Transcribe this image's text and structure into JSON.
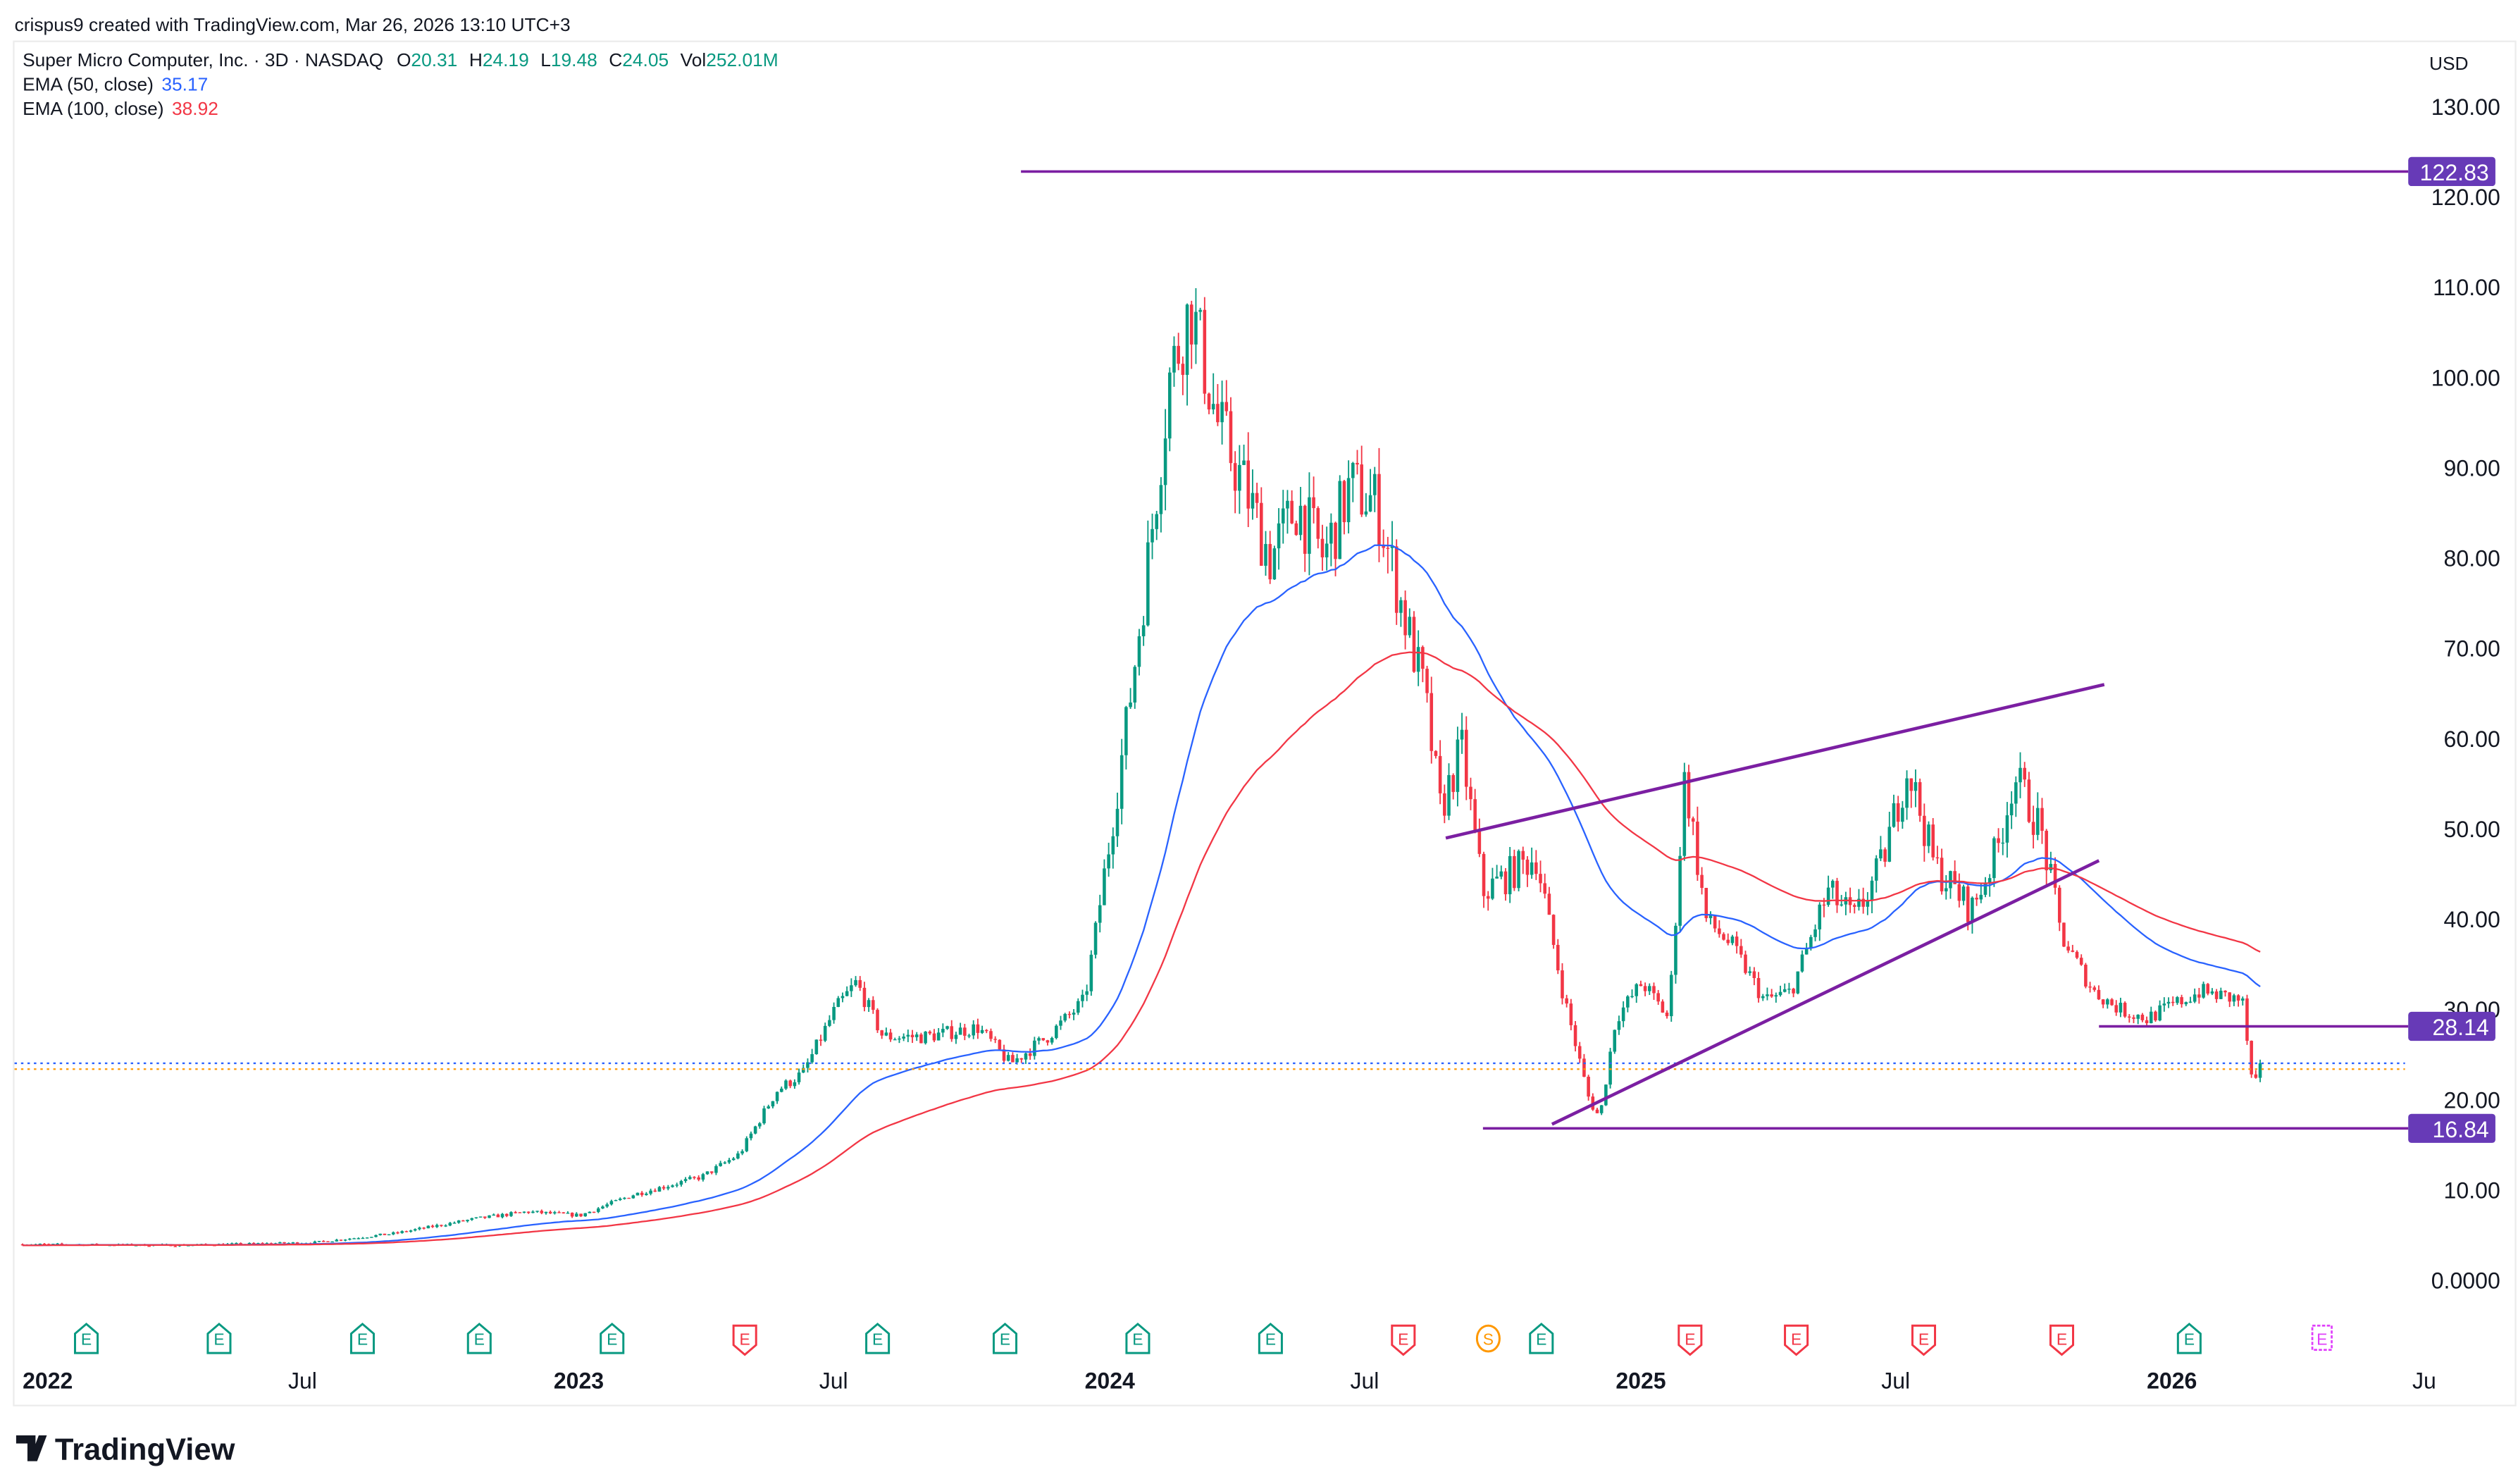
{
  "attribution": "crispus9 created with TradingView.com, Mar 26, 2026 13:10 UTC+3",
  "legend": {
    "symbol": "Super Micro Computer, Inc. · 3D · NASDAQ",
    "o_label": "O",
    "o": "20.31",
    "h_label": "H",
    "h": "24.19",
    "l_label": "L",
    "l": "19.48",
    "c_label": "C",
    "c": "24.05",
    "vol_label": "Vol",
    "vol": "252.01M",
    "ema50_label": "EMA (50, close)",
    "ema50": "35.17",
    "ema100_label": "EMA (100, close)",
    "ema100": "38.92"
  },
  "currency": "USD",
  "logo": "TradingView",
  "colors": {
    "up": "#089981",
    "down": "#f23645",
    "ema50": "#2962ff",
    "ema100": "#f23645",
    "drawing": "#7b1fa2",
    "label": "#673ab7",
    "grid": "#ffffff"
  },
  "chart_data": {
    "type": "candlestick",
    "title": "Super Micro Computer, Inc. · 3D · NASDAQ",
    "interval": "3D",
    "ylim": [
      0,
      130
    ],
    "yticks": [
      "0.0000",
      "10.00",
      "20.00",
      "30.00",
      "40.00",
      "50.00",
      "60.00",
      "70.00",
      "80.00",
      "90.00",
      "100.00",
      "110.00",
      "120.00",
      "130.00"
    ],
    "ytick_values": [
      0,
      10,
      20,
      30,
      40,
      50,
      60,
      70,
      80,
      90,
      100,
      110,
      120,
      130
    ],
    "xlim": [
      2022.0,
      2026.52
    ],
    "xticks": [
      {
        "t": 2022.0,
        "label": "2022",
        "bold": true
      },
      {
        "t": 2022.5,
        "label": "Jul"
      },
      {
        "t": 2023.0,
        "label": "2023",
        "bold": true
      },
      {
        "t": 2023.5,
        "label": "Jul"
      },
      {
        "t": 2024.0,
        "label": "2024",
        "bold": true
      },
      {
        "t": 2024.5,
        "label": "Jul"
      },
      {
        "t": 2025.0,
        "label": "2025",
        "bold": true
      },
      {
        "t": 2025.5,
        "label": "Jul"
      },
      {
        "t": 2026.0,
        "label": "2026",
        "bold": true
      },
      {
        "t": 2026.5,
        "label": "Ju"
      }
    ],
    "close_path": [
      [
        2022.0,
        4.0
      ],
      [
        2022.3,
        3.9
      ],
      [
        2022.55,
        4.2
      ],
      [
        2022.7,
        5.2
      ],
      [
        2022.85,
        6.8
      ],
      [
        2022.95,
        7.6
      ],
      [
        2023.05,
        7.2
      ],
      [
        2023.15,
        9.5
      ],
      [
        2023.28,
        11.5
      ],
      [
        2023.35,
        14
      ],
      [
        2023.42,
        21
      ],
      [
        2023.47,
        23
      ],
      [
        2023.53,
        30
      ],
      [
        2023.57,
        33
      ],
      [
        2023.62,
        27
      ],
      [
        2023.7,
        27
      ],
      [
        2023.8,
        28
      ],
      [
        2023.86,
        24
      ],
      [
        2023.93,
        27
      ],
      [
        2024.0,
        31
      ],
      [
        2024.04,
        46
      ],
      [
        2024.08,
        62
      ],
      [
        2024.12,
        80
      ],
      [
        2024.16,
        100
      ],
      [
        2024.2,
        108
      ],
      [
        2024.25,
        95
      ],
      [
        2024.3,
        88
      ],
      [
        2024.35,
        80
      ],
      [
        2024.4,
        86
      ],
      [
        2024.45,
        80
      ],
      [
        2024.5,
        88
      ],
      [
        2024.55,
        86
      ],
      [
        2024.6,
        74
      ],
      [
        2024.64,
        65
      ],
      [
        2024.67,
        52
      ],
      [
        2024.71,
        59
      ],
      [
        2024.75,
        43
      ],
      [
        2024.8,
        45
      ],
      [
        2024.85,
        47
      ],
      [
        2024.9,
        32
      ],
      [
        2024.95,
        20
      ],
      [
        2024.97,
        18
      ],
      [
        2025.0,
        29
      ],
      [
        2025.05,
        33
      ],
      [
        2025.1,
        29
      ],
      [
        2025.13,
        56
      ],
      [
        2025.17,
        40
      ],
      [
        2025.22,
        37
      ],
      [
        2025.28,
        31
      ],
      [
        2025.33,
        32
      ],
      [
        2025.4,
        43
      ],
      [
        2025.45,
        40
      ],
      [
        2025.5,
        46
      ],
      [
        2025.55,
        57
      ],
      [
        2025.6,
        46
      ],
      [
        2025.67,
        41
      ],
      [
        2025.72,
        48
      ],
      [
        2025.75,
        56
      ],
      [
        2025.8,
        50
      ],
      [
        2025.84,
        38
      ],
      [
        2025.9,
        32
      ],
      [
        2025.95,
        30
      ],
      [
        2026.0,
        29
      ],
      [
        2026.1,
        32
      ],
      [
        2026.18,
        31
      ],
      [
        2026.2,
        21
      ],
      [
        2026.22,
        24.05
      ]
    ],
    "series": [
      {
        "name": "EMA (50, close)",
        "last": 35.17
      },
      {
        "name": "EMA (100, close)",
        "last": 38.92
      }
    ],
    "horizontal_levels": [
      {
        "price": 122.83,
        "label": "122.83",
        "from": 2023.88
      },
      {
        "price": 28.14,
        "label": "28.14",
        "from": 2025.91
      },
      {
        "price": 16.84,
        "label": "16.84",
        "from": 2024.75
      }
    ],
    "trend_lines": [
      {
        "name": "wedge-upper",
        "p1": [
          2024.68,
          49
        ],
        "p2": [
          2025.92,
          66
        ]
      },
      {
        "name": "wedge-lower",
        "p1": [
          2024.88,
          17.3
        ],
        "p2": [
          2025.91,
          46.5
        ]
      }
    ],
    "price_lines": [
      {
        "price": 24.05,
        "color": "#2962ff"
      },
      {
        "price": 23.4,
        "color": "#ff9800"
      }
    ],
    "events": [
      {
        "t": 2022.12,
        "type": "E",
        "kind": "earnings-beat"
      },
      {
        "t": 2022.37,
        "type": "E",
        "kind": "earnings-beat"
      },
      {
        "t": 2022.64,
        "type": "E",
        "kind": "earnings-beat"
      },
      {
        "t": 2022.86,
        "type": "E",
        "kind": "earnings-beat"
      },
      {
        "t": 2023.11,
        "type": "E",
        "kind": "earnings-beat"
      },
      {
        "t": 2023.36,
        "type": "E",
        "kind": "earnings-miss"
      },
      {
        "t": 2023.61,
        "type": "E",
        "kind": "earnings-beat"
      },
      {
        "t": 2023.85,
        "type": "E",
        "kind": "earnings-beat"
      },
      {
        "t": 2024.1,
        "type": "E",
        "kind": "earnings-beat"
      },
      {
        "t": 2024.35,
        "type": "E",
        "kind": "earnings-beat"
      },
      {
        "t": 2024.6,
        "type": "E",
        "kind": "earnings-miss"
      },
      {
        "t": 2024.76,
        "type": "S",
        "kind": "split"
      },
      {
        "t": 2024.86,
        "type": "E",
        "kind": "earnings-beat"
      },
      {
        "t": 2025.14,
        "type": "E",
        "kind": "earnings-miss"
      },
      {
        "t": 2025.34,
        "type": "E",
        "kind": "earnings-miss"
      },
      {
        "t": 2025.58,
        "type": "E",
        "kind": "earnings-miss"
      },
      {
        "t": 2025.84,
        "type": "E",
        "kind": "earnings-miss"
      },
      {
        "t": 2026.08,
        "type": "E",
        "kind": "earnings-beat"
      },
      {
        "t": 2026.33,
        "type": "E",
        "kind": "upcoming"
      }
    ]
  }
}
